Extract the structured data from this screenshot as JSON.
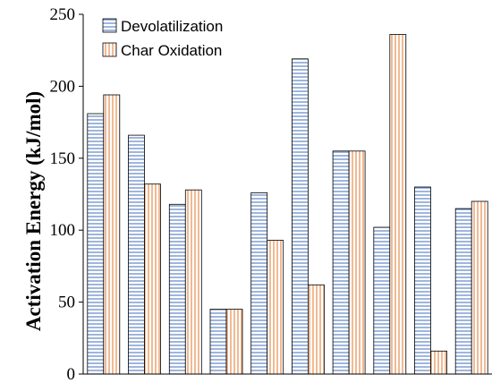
{
  "chart_data": {
    "type": "bar",
    "title": "",
    "xlabel": "",
    "ylabel": "Activation Energy (kJ/mol)",
    "ylim": [
      0,
      250
    ],
    "yticks": [
      0,
      50,
      100,
      150,
      200,
      250
    ],
    "grid": false,
    "legend_position": "top-left",
    "categories": [
      "",
      "",
      "",
      "",
      "",
      "",
      "",
      "",
      "",
      ""
    ],
    "series": [
      {
        "name": "Devolatilization",
        "pattern": "horizontal-stripes",
        "color": "#6b8fc9",
        "values": [
          181,
          166,
          118,
          45,
          126,
          219,
          155,
          102,
          130,
          115
        ]
      },
      {
        "name": "Char Oxidation",
        "pattern": "vertical-stripes",
        "color": "#e8965a",
        "values": [
          194,
          132,
          128,
          45,
          93,
          62,
          155,
          236,
          16,
          120
        ]
      }
    ]
  }
}
